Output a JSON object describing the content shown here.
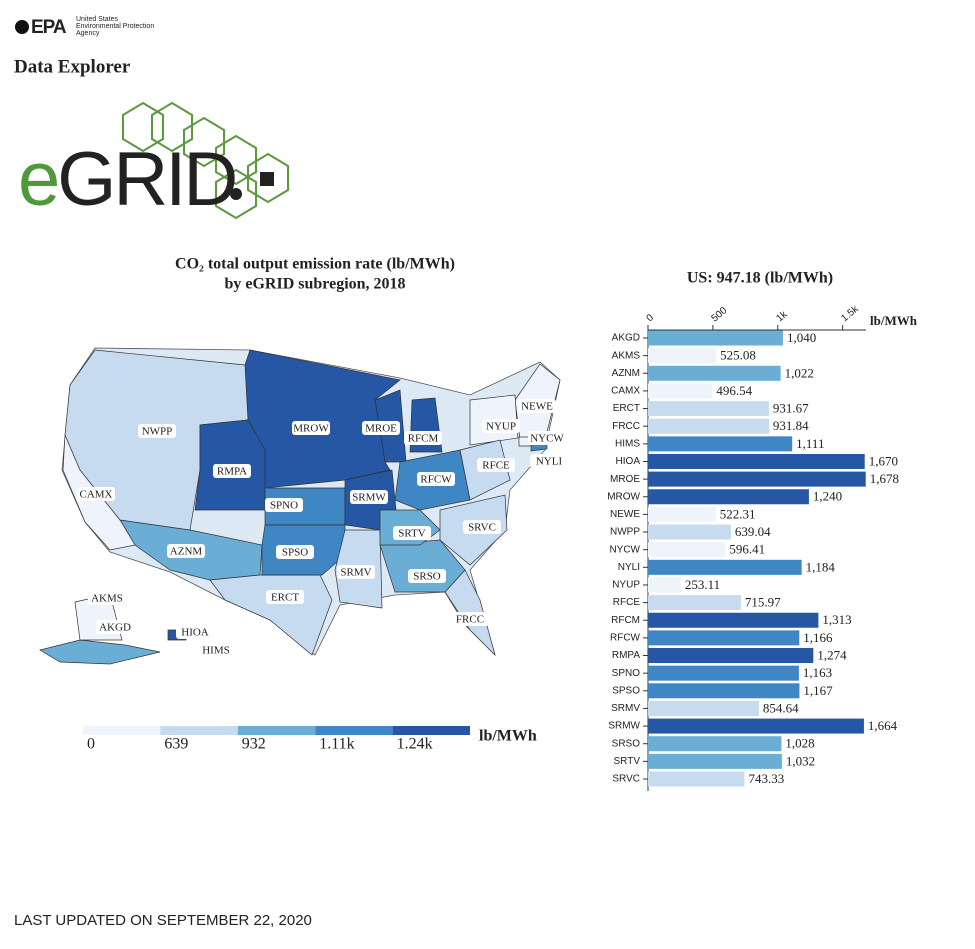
{
  "header": {
    "agency_short": "EPA",
    "agency_lines": [
      "United States",
      "Environmental Protection",
      "Agency"
    ],
    "page_title": "Data Explorer",
    "logo": [
      "e",
      "GRID"
    ]
  },
  "chart_data": [
    {
      "type": "map",
      "title": [
        "CO₂ total output emission rate (lb/MWh)",
        "by eGRID subregion, 2018"
      ],
      "legend": {
        "bins": [
          0,
          639,
          932,
          {
            "value": 1110,
            "label": "1.11k"
          },
          {
            "value": 1240,
            "label": "1.24k"
          }
        ],
        "colors": [
          "#eff3fb",
          "#c6dbef",
          "#6aaed6",
          "#3f86c4",
          "#2557a4"
        ],
        "unit": "lb/MWh"
      }
    },
    {
      "type": "bar",
      "orientation": "horizontal",
      "title": "US: 947.18 (lb/MWh)",
      "categories": [
        "AKGD",
        "AKMS",
        "AZNM",
        "CAMX",
        "ERCT",
        "FRCC",
        "HIMS",
        "HIOA",
        "MROE",
        "MROW",
        "NEWE",
        "NWPP",
        "NYCW",
        "NYLI",
        "NYUP",
        "RFCE",
        "RFCM",
        "RFCW",
        "RMPA",
        "SPNO",
        "SPSO",
        "SRMV",
        "SRMW",
        "SRSO",
        "SRTV",
        "SRVC"
      ],
      "values": [
        1040,
        525.08,
        1022,
        496.54,
        931.67,
        931.84,
        1111,
        1670,
        1678,
        1240,
        522.31,
        639.04,
        596.41,
        1184,
        253.11,
        715.97,
        1313,
        1166,
        1274,
        1163,
        1167,
        854.64,
        1664,
        1028,
        1032,
        743.33
      ],
      "value_labels": [
        "1,040",
        "525.08",
        "1,022",
        "496.54",
        "931.67",
        "931.84",
        "1,111",
        "1,670",
        "1,678",
        "1,240",
        "522.31",
        "639.04",
        "596.41",
        "1,184",
        "253.11",
        "715.97",
        "1,313",
        "1,166",
        "1,274",
        "1,163",
        "1,167",
        "854.64",
        "1,664",
        "1,028",
        "1,032",
        "743.33"
      ],
      "xlim": [
        0,
        1680
      ],
      "xticks": [
        0,
        500,
        {
          "value": 1000,
          "label": "1k"
        },
        {
          "value": 1500,
          "label": "1.5k"
        }
      ],
      "x_label": "lb/MWh"
    }
  ],
  "footer": "LAST UPDATED ON SEPTEMBER 22, 2020"
}
